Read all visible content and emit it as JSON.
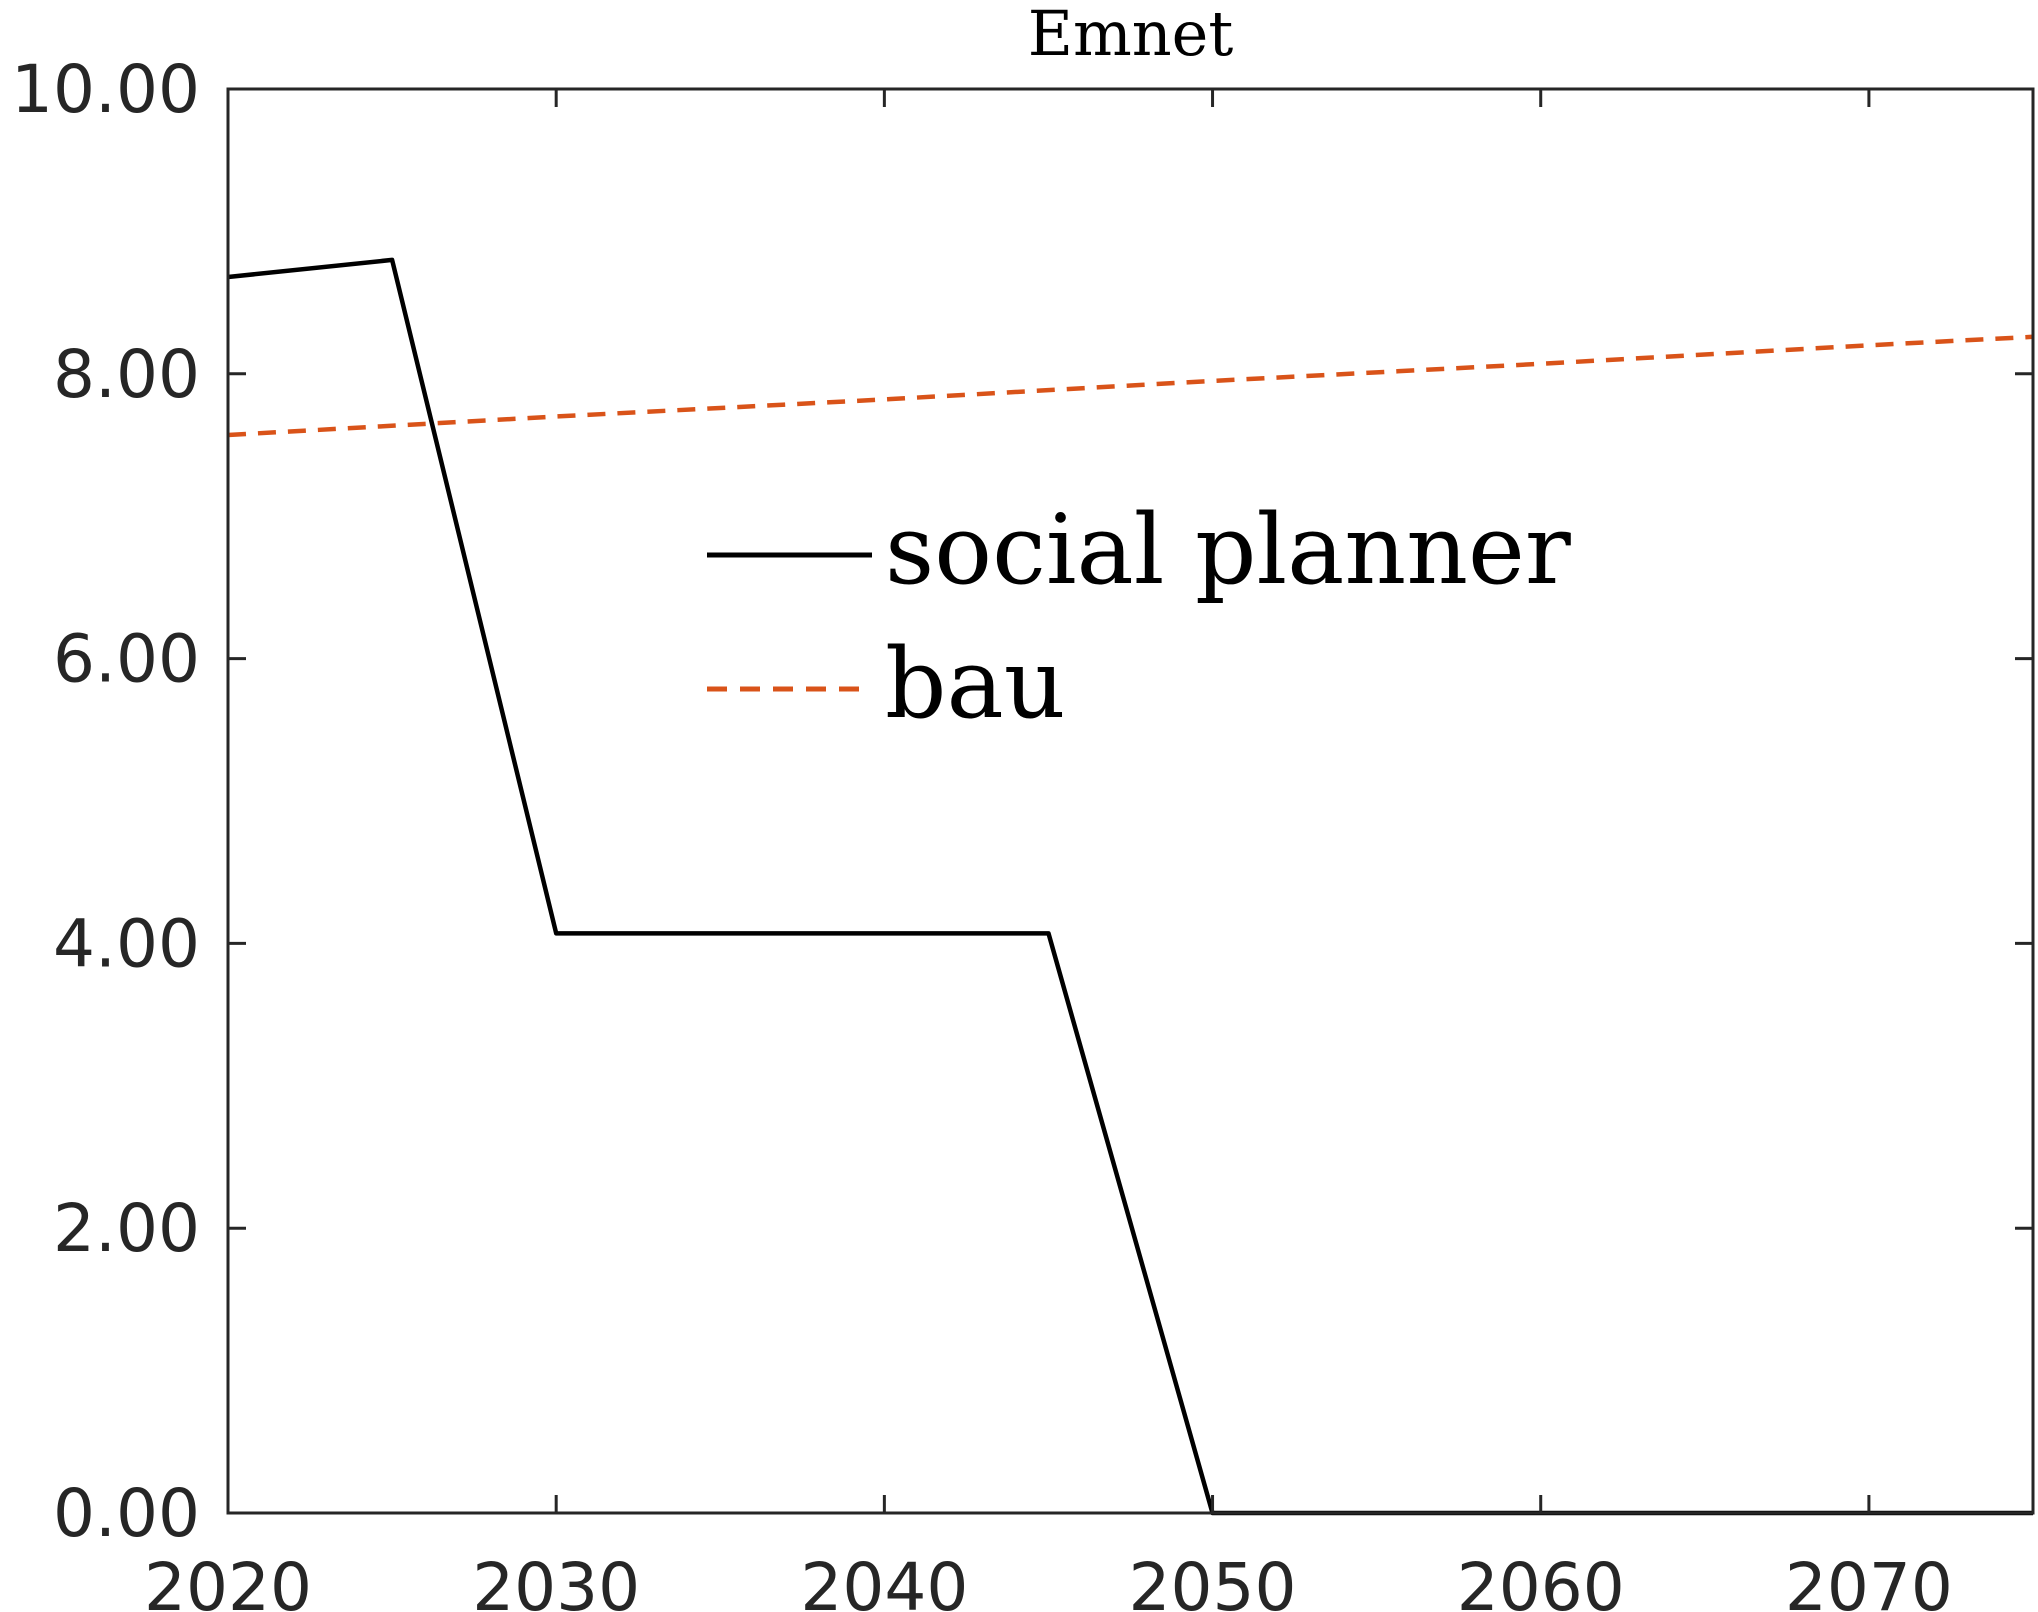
{
  "chart_data": {
    "type": "line",
    "title": "Emnet",
    "xlabel": "",
    "ylabel": "",
    "xlim": [
      2020,
      2075
    ],
    "ylim": [
      0,
      10
    ],
    "x_ticks": [
      2020,
      2030,
      2040,
      2050,
      2060,
      2070
    ],
    "y_ticks": [
      0,
      2,
      4,
      6,
      8,
      10
    ],
    "x_tick_labels": [
      "2020",
      "2030",
      "2040",
      "2050",
      "2060",
      "2070"
    ],
    "y_tick_labels": [
      "0.00",
      "2.00",
      "4.00",
      "6.00",
      "8.00",
      "10.00"
    ],
    "grid": false,
    "legend_position": "center",
    "series": [
      {
        "name": "social planner",
        "color": "#000000",
        "style": "solid",
        "x": [
          2020,
          2025,
          2030,
          2045,
          2050,
          2075
        ],
        "y": [
          8.68,
          8.8,
          4.07,
          4.07,
          0.0,
          0.0
        ]
      },
      {
        "name": "bau",
        "color": "#d95319",
        "style": "dashed",
        "x": [
          2020,
          2030,
          2040,
          2050,
          2060,
          2070,
          2075
        ],
        "y": [
          7.57,
          7.7,
          7.82,
          7.95,
          8.07,
          8.2,
          8.26
        ]
      }
    ]
  }
}
